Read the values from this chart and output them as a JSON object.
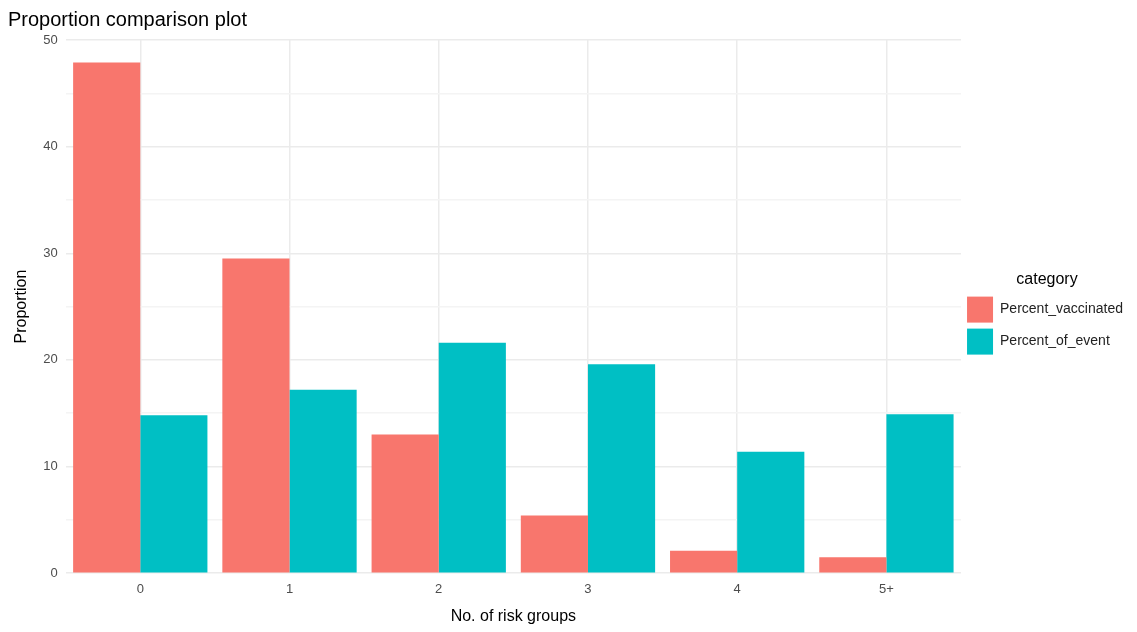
{
  "chart_data": {
    "type": "bar",
    "title": "Proportion comparison plot",
    "xlabel": "No. of risk groups",
    "ylabel": "Proportion",
    "legend_title": "category",
    "categories": [
      "0",
      "1",
      "2",
      "3",
      "4",
      "5+"
    ],
    "series": [
      {
        "name": "Percent_vaccinated",
        "color": "#f8766d",
        "values": [
          47.9,
          29.5,
          13.0,
          5.4,
          2.1,
          1.5
        ]
      },
      {
        "name": "Percent_of_event",
        "color": "#00bfc4",
        "values": [
          14.8,
          17.2,
          21.6,
          19.6,
          11.4,
          14.9
        ]
      }
    ],
    "ylim": [
      0,
      50
    ],
    "yticks": [
      0,
      {
        "value": 5,
        "label": null
      },
      10,
      {
        "value": 15,
        "label": null
      },
      20,
      {
        "value": 25,
        "label": null
      },
      30,
      {
        "value": 35,
        "label": null
      },
      40,
      {
        "value": 45,
        "label": null
      },
      50
    ],
    "grid": true,
    "legend": "right"
  }
}
